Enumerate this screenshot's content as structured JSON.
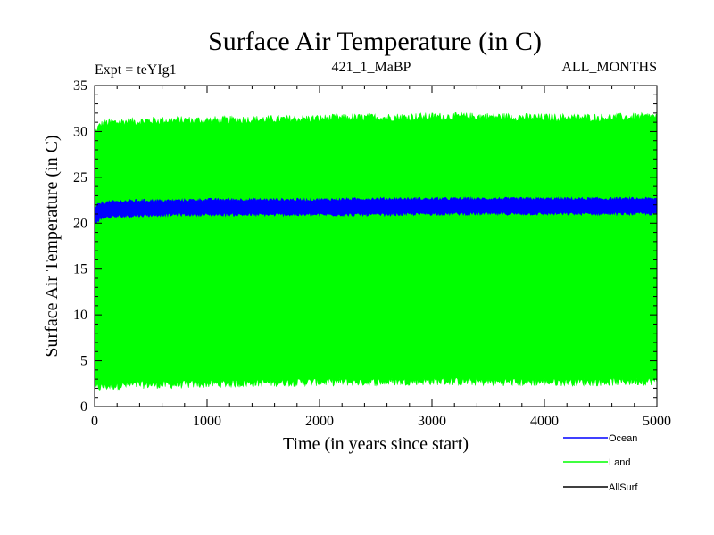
{
  "chart_data": {
    "type": "line",
    "title": "Surface Air Temperature (in C)",
    "subtitle_left": "Expt = teYIg1",
    "subtitle_center": "421_1_MaBP",
    "subtitle_right": "ALL_MONTHS",
    "xlabel": "Time (in years since start)",
    "ylabel": "Surface Air Temperature (in C)",
    "xlim": [
      0,
      5000
    ],
    "ylim": [
      0,
      35
    ],
    "xticks": [
      0,
      1000,
      2000,
      3000,
      4000,
      5000
    ],
    "yticks": [
      0,
      5,
      10,
      15,
      20,
      25,
      30,
      35
    ],
    "grid": false,
    "legend_position": "bottom-right",
    "series": [
      {
        "name": "Land",
        "color": "#00ff00",
        "band": true,
        "x": [
          0,
          25,
          50,
          100,
          200,
          400,
          700,
          1000,
          1500,
          2000,
          2500,
          3000,
          3500,
          4000,
          4500,
          5000
        ],
        "upper": [
          29.8,
          30.4,
          30.8,
          31.0,
          31.1,
          31.2,
          31.3,
          31.3,
          31.4,
          31.5,
          31.6,
          31.7,
          31.7,
          31.6,
          31.6,
          31.7
        ],
        "lower": [
          1.8,
          2.0,
          2.0,
          2.1,
          2.2,
          2.3,
          2.3,
          2.4,
          2.5,
          2.6,
          2.6,
          2.7,
          2.6,
          2.6,
          2.6,
          2.7
        ]
      },
      {
        "name": "Ocean",
        "color": "#0000ff",
        "band": true,
        "x": [
          0,
          25,
          50,
          100,
          200,
          400,
          700,
          1000,
          1500,
          2000,
          2500,
          3000,
          3500,
          4000,
          4500,
          5000
        ],
        "upper": [
          21.6,
          22.0,
          22.2,
          22.3,
          22.4,
          22.5,
          22.5,
          22.6,
          22.6,
          22.6,
          22.7,
          22.7,
          22.7,
          22.7,
          22.7,
          22.7
        ],
        "lower": [
          19.9,
          20.2,
          20.4,
          20.6,
          20.7,
          20.8,
          20.9,
          20.9,
          20.9,
          20.9,
          20.9,
          21.0,
          21.0,
          21.0,
          21.0,
          21.0
        ]
      },
      {
        "name": "AllSurf",
        "color": "#000000",
        "band": false
      }
    ]
  }
}
